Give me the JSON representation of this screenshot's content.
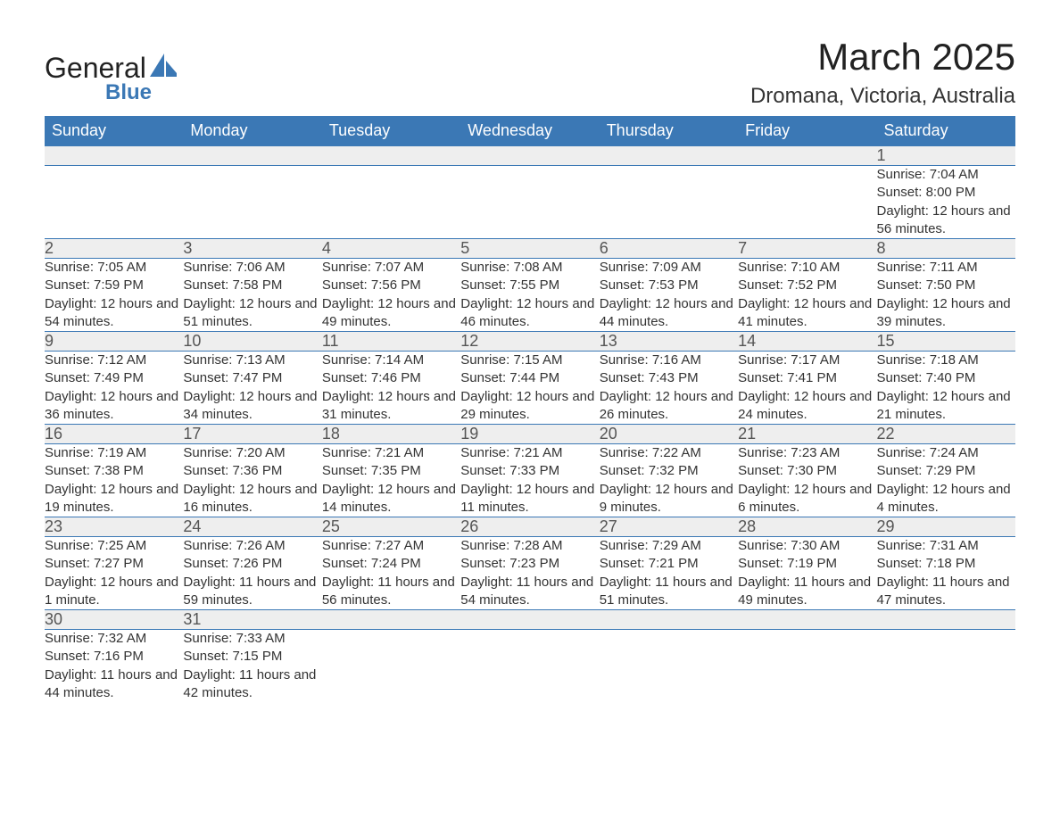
{
  "logo": {
    "text1": "General",
    "text2": "Blue"
  },
  "title": "March 2025",
  "location": "Dromana, Victoria, Australia",
  "colors": {
    "header_bg": "#3b78b5",
    "header_text": "#ffffff",
    "daynum_bg": "#eeeeee",
    "border": "#3b78b5",
    "page_bg": "#ffffff",
    "text": "#333333",
    "logo_blue": "#3b78b5"
  },
  "weekdays": [
    "Sunday",
    "Monday",
    "Tuesday",
    "Wednesday",
    "Thursday",
    "Friday",
    "Saturday"
  ],
  "weeks": [
    [
      null,
      null,
      null,
      null,
      null,
      null,
      {
        "n": "1",
        "sr": "Sunrise: 7:04 AM",
        "ss": "Sunset: 8:00 PM",
        "dl": "Daylight: 12 hours and 56 minutes."
      }
    ],
    [
      {
        "n": "2",
        "sr": "Sunrise: 7:05 AM",
        "ss": "Sunset: 7:59 PM",
        "dl": "Daylight: 12 hours and 54 minutes."
      },
      {
        "n": "3",
        "sr": "Sunrise: 7:06 AM",
        "ss": "Sunset: 7:58 PM",
        "dl": "Daylight: 12 hours and 51 minutes."
      },
      {
        "n": "4",
        "sr": "Sunrise: 7:07 AM",
        "ss": "Sunset: 7:56 PM",
        "dl": "Daylight: 12 hours and 49 minutes."
      },
      {
        "n": "5",
        "sr": "Sunrise: 7:08 AM",
        "ss": "Sunset: 7:55 PM",
        "dl": "Daylight: 12 hours and 46 minutes."
      },
      {
        "n": "6",
        "sr": "Sunrise: 7:09 AM",
        "ss": "Sunset: 7:53 PM",
        "dl": "Daylight: 12 hours and 44 minutes."
      },
      {
        "n": "7",
        "sr": "Sunrise: 7:10 AM",
        "ss": "Sunset: 7:52 PM",
        "dl": "Daylight: 12 hours and 41 minutes."
      },
      {
        "n": "8",
        "sr": "Sunrise: 7:11 AM",
        "ss": "Sunset: 7:50 PM",
        "dl": "Daylight: 12 hours and 39 minutes."
      }
    ],
    [
      {
        "n": "9",
        "sr": "Sunrise: 7:12 AM",
        "ss": "Sunset: 7:49 PM",
        "dl": "Daylight: 12 hours and 36 minutes."
      },
      {
        "n": "10",
        "sr": "Sunrise: 7:13 AM",
        "ss": "Sunset: 7:47 PM",
        "dl": "Daylight: 12 hours and 34 minutes."
      },
      {
        "n": "11",
        "sr": "Sunrise: 7:14 AM",
        "ss": "Sunset: 7:46 PM",
        "dl": "Daylight: 12 hours and 31 minutes."
      },
      {
        "n": "12",
        "sr": "Sunrise: 7:15 AM",
        "ss": "Sunset: 7:44 PM",
        "dl": "Daylight: 12 hours and 29 minutes."
      },
      {
        "n": "13",
        "sr": "Sunrise: 7:16 AM",
        "ss": "Sunset: 7:43 PM",
        "dl": "Daylight: 12 hours and 26 minutes."
      },
      {
        "n": "14",
        "sr": "Sunrise: 7:17 AM",
        "ss": "Sunset: 7:41 PM",
        "dl": "Daylight: 12 hours and 24 minutes."
      },
      {
        "n": "15",
        "sr": "Sunrise: 7:18 AM",
        "ss": "Sunset: 7:40 PM",
        "dl": "Daylight: 12 hours and 21 minutes."
      }
    ],
    [
      {
        "n": "16",
        "sr": "Sunrise: 7:19 AM",
        "ss": "Sunset: 7:38 PM",
        "dl": "Daylight: 12 hours and 19 minutes."
      },
      {
        "n": "17",
        "sr": "Sunrise: 7:20 AM",
        "ss": "Sunset: 7:36 PM",
        "dl": "Daylight: 12 hours and 16 minutes."
      },
      {
        "n": "18",
        "sr": "Sunrise: 7:21 AM",
        "ss": "Sunset: 7:35 PM",
        "dl": "Daylight: 12 hours and 14 minutes."
      },
      {
        "n": "19",
        "sr": "Sunrise: 7:21 AM",
        "ss": "Sunset: 7:33 PM",
        "dl": "Daylight: 12 hours and 11 minutes."
      },
      {
        "n": "20",
        "sr": "Sunrise: 7:22 AM",
        "ss": "Sunset: 7:32 PM",
        "dl": "Daylight: 12 hours and 9 minutes."
      },
      {
        "n": "21",
        "sr": "Sunrise: 7:23 AM",
        "ss": "Sunset: 7:30 PM",
        "dl": "Daylight: 12 hours and 6 minutes."
      },
      {
        "n": "22",
        "sr": "Sunrise: 7:24 AM",
        "ss": "Sunset: 7:29 PM",
        "dl": "Daylight: 12 hours and 4 minutes."
      }
    ],
    [
      {
        "n": "23",
        "sr": "Sunrise: 7:25 AM",
        "ss": "Sunset: 7:27 PM",
        "dl": "Daylight: 12 hours and 1 minute."
      },
      {
        "n": "24",
        "sr": "Sunrise: 7:26 AM",
        "ss": "Sunset: 7:26 PM",
        "dl": "Daylight: 11 hours and 59 minutes."
      },
      {
        "n": "25",
        "sr": "Sunrise: 7:27 AM",
        "ss": "Sunset: 7:24 PM",
        "dl": "Daylight: 11 hours and 56 minutes."
      },
      {
        "n": "26",
        "sr": "Sunrise: 7:28 AM",
        "ss": "Sunset: 7:23 PM",
        "dl": "Daylight: 11 hours and 54 minutes."
      },
      {
        "n": "27",
        "sr": "Sunrise: 7:29 AM",
        "ss": "Sunset: 7:21 PM",
        "dl": "Daylight: 11 hours and 51 minutes."
      },
      {
        "n": "28",
        "sr": "Sunrise: 7:30 AM",
        "ss": "Sunset: 7:19 PM",
        "dl": "Daylight: 11 hours and 49 minutes."
      },
      {
        "n": "29",
        "sr": "Sunrise: 7:31 AM",
        "ss": "Sunset: 7:18 PM",
        "dl": "Daylight: 11 hours and 47 minutes."
      }
    ],
    [
      {
        "n": "30",
        "sr": "Sunrise: 7:32 AM",
        "ss": "Sunset: 7:16 PM",
        "dl": "Daylight: 11 hours and 44 minutes."
      },
      {
        "n": "31",
        "sr": "Sunrise: 7:33 AM",
        "ss": "Sunset: 7:15 PM",
        "dl": "Daylight: 11 hours and 42 minutes."
      },
      null,
      null,
      null,
      null,
      null
    ]
  ]
}
